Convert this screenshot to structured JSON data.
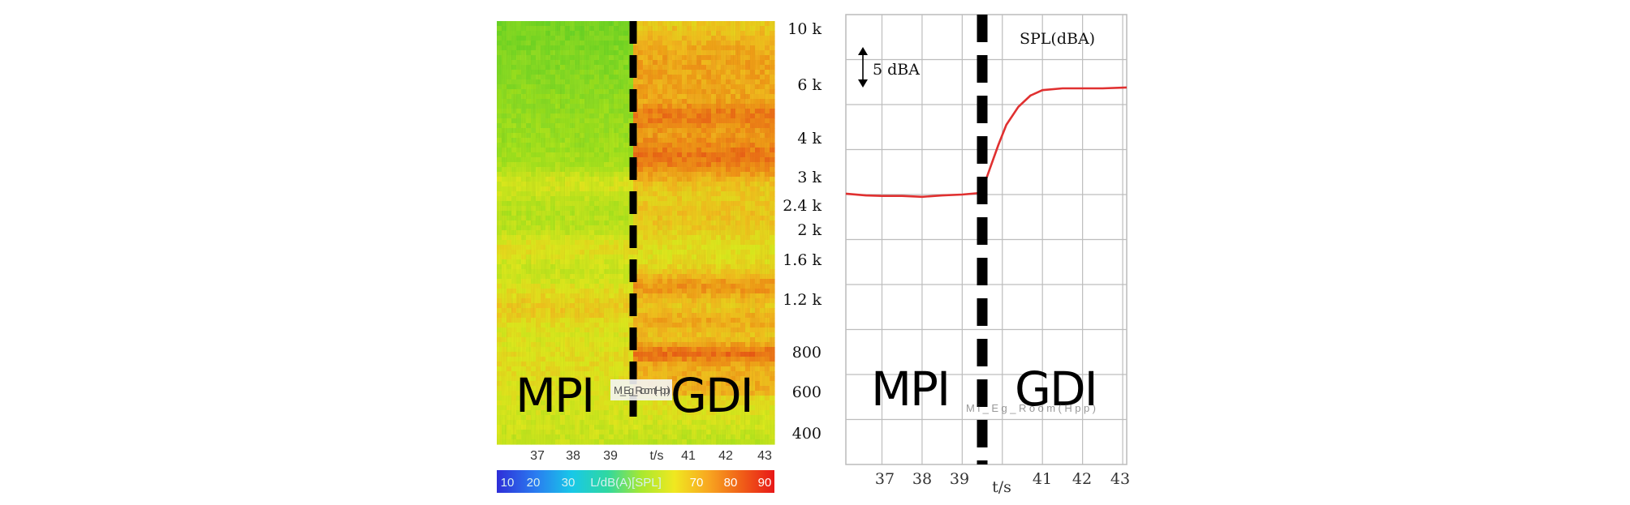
{
  "chart_data": [
    {
      "type": "heatmap",
      "x_ticks": [
        "37",
        "38",
        "39",
        "t/s",
        "41",
        "42",
        "43"
      ],
      "y_ticks": [
        "10 k",
        "6 k",
        "4 k",
        "3 k",
        "2.4 k",
        "2 k",
        "1.6 k",
        "1.2 k",
        "800",
        "600",
        "400"
      ],
      "colorbar_ticks": [
        "10",
        "20",
        "30",
        "L/dB(A)[SPL]",
        "70",
        "80",
        "90"
      ],
      "region_labels": [
        "MPI",
        "GDI"
      ],
      "overlay_tag": "Mi_Eg_Room(Hpp)",
      "x_divider": 39.5,
      "colors": {
        "low": "#2030d0",
        "mid": "#d8f020",
        "high": "#f01818"
      }
    },
    {
      "type": "line",
      "ylabel": "SPL(dBA)",
      "scale_annotation": "5 dBA",
      "x_ticks": [
        "37",
        "38",
        "39",
        "t/s",
        "41",
        "42",
        "43"
      ],
      "xlim": [
        36.1,
        43.1
      ],
      "ylim": [
        0,
        10
      ],
      "region_labels": [
        "MPI",
        "GDI"
      ],
      "overlay_tag": "Mi_Eg_Room(Hpp)",
      "x_divider": 39.5,
      "series": [
        {
          "color": "#e03030",
          "x": [
            36.1,
            36.6,
            37.0,
            37.5,
            38.0,
            38.5,
            39.0,
            39.4,
            39.5,
            39.7,
            39.9,
            40.1,
            40.4,
            40.7,
            41.0,
            41.5,
            42.0,
            42.5,
            43.1
          ],
          "y": [
            6.02,
            5.98,
            5.97,
            5.97,
            5.95,
            5.98,
            6.0,
            6.03,
            6.1,
            6.6,
            7.1,
            7.55,
            7.95,
            8.2,
            8.32,
            8.36,
            8.36,
            8.36,
            8.38
          ]
        }
      ]
    }
  ]
}
